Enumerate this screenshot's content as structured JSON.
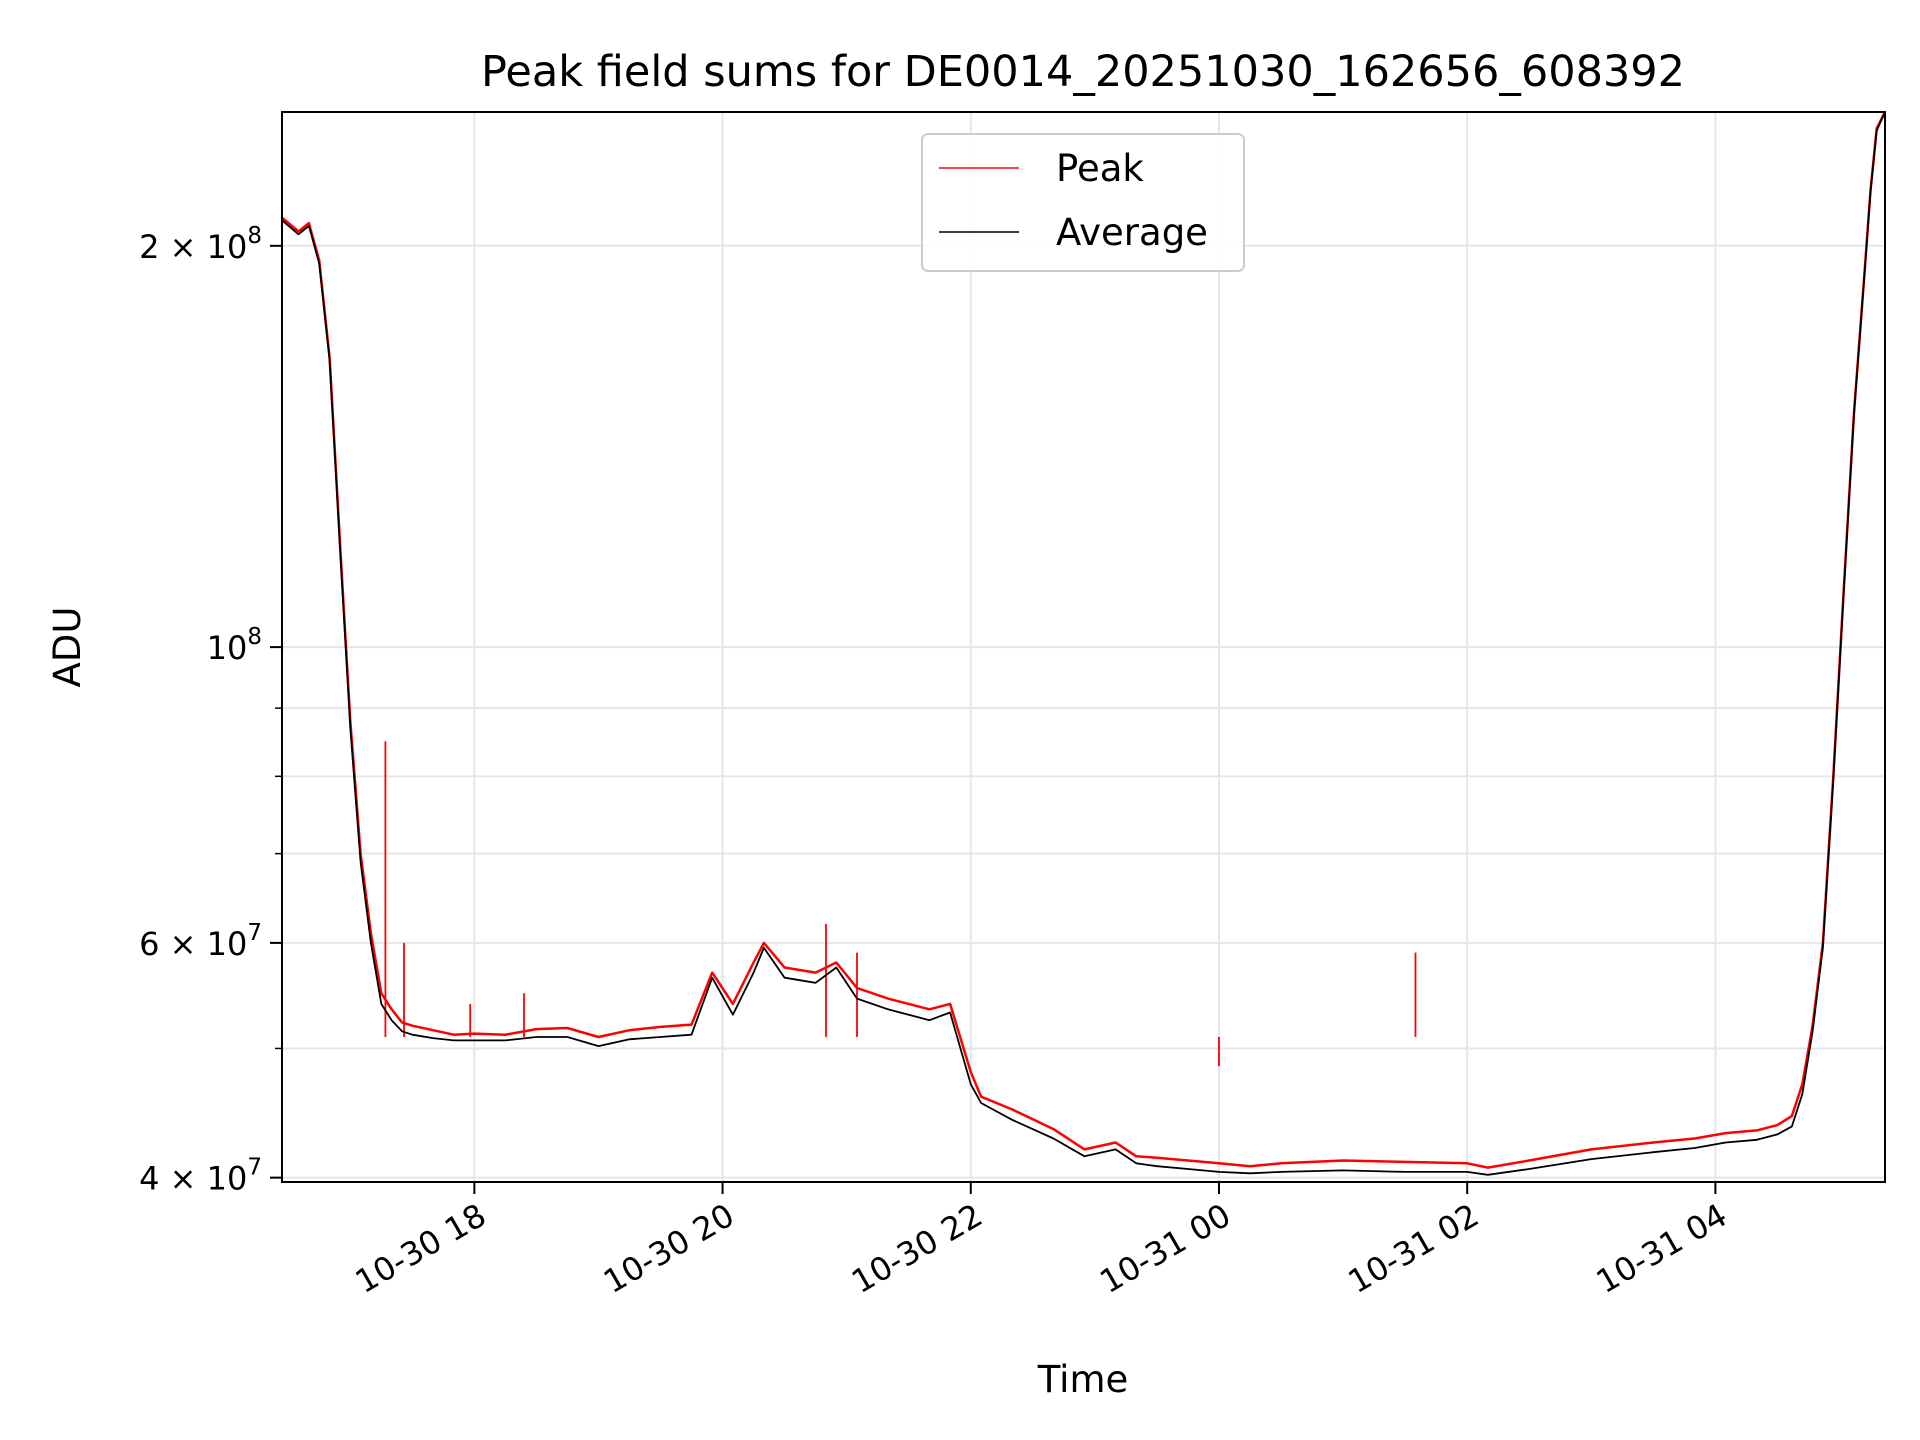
{
  "chart_data": {
    "type": "line",
    "title": "Peak field sums for DE0014_20251030_162656_608392",
    "xlabel": "Time",
    "ylabel": "ADU",
    "yscale": "log",
    "grid": true,
    "legend_position": "top-center",
    "xlim": [
      "2025-10-30 16:27",
      "2025-10-31 05:22"
    ],
    "ylim": [
      39700000,
      252000000
    ],
    "x_ticks": [
      {
        "x": "2025-10-30 18:00",
        "label": "10-30 18"
      },
      {
        "x": "2025-10-30 20:00",
        "label": "10-30 20"
      },
      {
        "x": "2025-10-30 22:00",
        "label": "10-30 22"
      },
      {
        "x": "2025-10-31 00:00",
        "label": "10-31 00"
      },
      {
        "x": "2025-10-31 02:00",
        "label": "10-31 02"
      },
      {
        "x": "2025-10-31 04:00",
        "label": "10-31 04"
      }
    ],
    "y_ticks": [
      {
        "y": 40000000,
        "base": "4",
        "exp": "7"
      },
      {
        "y": 60000000,
        "base": "6",
        "exp": "7"
      },
      {
        "y": 100000000,
        "base": "",
        "exp": "8"
      },
      {
        "y": 200000000,
        "base": "2",
        "exp": "8"
      }
    ],
    "series": [
      {
        "name": "Peak",
        "color": "#ff0000",
        "x": [
          "2025-10-30 16:27",
          "2025-10-30 16:35",
          "2025-10-30 16:40",
          "2025-10-30 16:45",
          "2025-10-30 16:50",
          "2025-10-30 16:55",
          "2025-10-30 17:00",
          "2025-10-30 17:05",
          "2025-10-30 17:10",
          "2025-10-30 17:15",
          "2025-10-30 17:20",
          "2025-10-30 17:25",
          "2025-10-30 17:30",
          "2025-10-30 17:40",
          "2025-10-30 17:50",
          "2025-10-30 18:00",
          "2025-10-30 18:15",
          "2025-10-30 18:30",
          "2025-10-30 18:45",
          "2025-10-30 19:00",
          "2025-10-30 19:15",
          "2025-10-30 19:30",
          "2025-10-30 19:45",
          "2025-10-30 19:55",
          "2025-10-30 20:05",
          "2025-10-30 20:15",
          "2025-10-30 20:20",
          "2025-10-30 20:30",
          "2025-10-30 20:45",
          "2025-10-30 20:55",
          "2025-10-30 21:05",
          "2025-10-30 21:20",
          "2025-10-30 21:30",
          "2025-10-30 21:40",
          "2025-10-30 21:50",
          "2025-10-30 22:00",
          "2025-10-30 22:05",
          "2025-10-30 22:20",
          "2025-10-30 22:40",
          "2025-10-30 22:55",
          "2025-10-30 23:10",
          "2025-10-30 23:20",
          "2025-10-30 23:30",
          "2025-10-30 23:45",
          "2025-10-31 00:00",
          "2025-10-31 00:15",
          "2025-10-31 00:30",
          "2025-10-31 01:00",
          "2025-10-31 01:30",
          "2025-10-31 02:00",
          "2025-10-31 02:10",
          "2025-10-31 02:30",
          "2025-10-31 03:00",
          "2025-10-31 03:30",
          "2025-10-31 03:50",
          "2025-10-31 04:05",
          "2025-10-31 04:20",
          "2025-10-31 04:30",
          "2025-10-31 04:37",
          "2025-10-31 04:42",
          "2025-10-31 04:47",
          "2025-10-31 04:52",
          "2025-10-31 04:57",
          "2025-10-31 05:02",
          "2025-10-31 05:07",
          "2025-10-31 05:12",
          "2025-10-31 05:15",
          "2025-10-31 05:18",
          "2025-10-31 05:22"
        ],
        "values": [
          210000000,
          205000000,
          208000000,
          195000000,
          165000000,
          120000000,
          88000000,
          70000000,
          61000000,
          55000000,
          53500000,
          52300000,
          52000000,
          51600000,
          51200000,
          51300000,
          51200000,
          51700000,
          51800000,
          51000000,
          51600000,
          51900000,
          52100000,
          57000000,
          54000000,
          58000000,
          60000000,
          57500000,
          57000000,
          58000000,
          55500000,
          54500000,
          54000000,
          53500000,
          54000000,
          48000000,
          46000000,
          45000000,
          43500000,
          42000000,
          42500000,
          41500000,
          41400000,
          41200000,
          41000000,
          40800000,
          41000000,
          41200000,
          41100000,
          41000000,
          40700000,
          41200000,
          42000000,
          42500000,
          42800000,
          43200000,
          43400000,
          43800000,
          44500000,
          47000000,
          52000000,
          60000000,
          80000000,
          110000000,
          150000000,
          190000000,
          220000000,
          245000000,
          252000000
        ],
        "spikes": [
          {
            "x": "2025-10-30 17:17",
            "value": 85000000
          },
          {
            "x": "2025-10-30 17:26",
            "value": 60000000
          },
          {
            "x": "2025-10-30 17:58",
            "value": 54000000
          },
          {
            "x": "2025-10-30 18:24",
            "value": 55000000
          },
          {
            "x": "2025-10-30 20:50",
            "value": 62000000
          },
          {
            "x": "2025-10-30 21:05",
            "value": 59000000
          },
          {
            "x": "2025-10-31 00:00",
            "value": 48500000
          },
          {
            "x": "2025-10-31 01:35",
            "value": 59000000
          }
        ]
      },
      {
        "name": "Average",
        "color": "#000000",
        "x": [
          "2025-10-30 16:27",
          "2025-10-30 16:35",
          "2025-10-30 16:40",
          "2025-10-30 16:45",
          "2025-10-30 16:50",
          "2025-10-30 16:55",
          "2025-10-30 17:00",
          "2025-10-30 17:05",
          "2025-10-30 17:10",
          "2025-10-30 17:15",
          "2025-10-30 17:20",
          "2025-10-30 17:25",
          "2025-10-30 17:30",
          "2025-10-30 17:40",
          "2025-10-30 17:50",
          "2025-10-30 18:00",
          "2025-10-30 18:15",
          "2025-10-30 18:30",
          "2025-10-30 18:45",
          "2025-10-30 19:00",
          "2025-10-30 19:15",
          "2025-10-30 19:30",
          "2025-10-30 19:45",
          "2025-10-30 19:55",
          "2025-10-30 20:05",
          "2025-10-30 20:15",
          "2025-10-30 20:20",
          "2025-10-30 20:30",
          "2025-10-30 20:45",
          "2025-10-30 20:55",
          "2025-10-30 21:05",
          "2025-10-30 21:20",
          "2025-10-30 21:30",
          "2025-10-30 21:40",
          "2025-10-30 21:50",
          "2025-10-30 22:00",
          "2025-10-30 22:05",
          "2025-10-30 22:20",
          "2025-10-30 22:40",
          "2025-10-30 22:55",
          "2025-10-30 23:10",
          "2025-10-30 23:20",
          "2025-10-30 23:30",
          "2025-10-30 23:45",
          "2025-10-31 00:00",
          "2025-10-31 00:15",
          "2025-10-31 00:30",
          "2025-10-31 01:00",
          "2025-10-31 01:30",
          "2025-10-31 02:00",
          "2025-10-31 02:10",
          "2025-10-31 02:30",
          "2025-10-31 03:00",
          "2025-10-31 03:30",
          "2025-10-31 03:50",
          "2025-10-31 04:05",
          "2025-10-31 04:20",
          "2025-10-31 04:30",
          "2025-10-31 04:37",
          "2025-10-31 04:42",
          "2025-10-31 04:47",
          "2025-10-31 04:52",
          "2025-10-31 04:57",
          "2025-10-31 05:02",
          "2025-10-31 05:07",
          "2025-10-31 05:12",
          "2025-10-31 05:15",
          "2025-10-31 05:18",
          "2025-10-31 05:22"
        ],
        "values": [
          209000000,
          204000000,
          207000000,
          194000000,
          164000000,
          119000000,
          87000000,
          69000000,
          60000000,
          54000000,
          52500000,
          51500000,
          51200000,
          50900000,
          50700000,
          50700000,
          50700000,
          51000000,
          51000000,
          50200000,
          50800000,
          51000000,
          51200000,
          56500000,
          53000000,
          57000000,
          59500000,
          56500000,
          56000000,
          57500000,
          54500000,
          53500000,
          53000000,
          52500000,
          53200000,
          47000000,
          45500000,
          44200000,
          42800000,
          41500000,
          42000000,
          41000000,
          40800000,
          40600000,
          40400000,
          40300000,
          40400000,
          40500000,
          40400000,
          40400000,
          40200000,
          40600000,
          41300000,
          41800000,
          42100000,
          42500000,
          42700000,
          43100000,
          43700000,
          46200000,
          51500000,
          59500000,
          79500000,
          109500000,
          149500000,
          189500000,
          219500000,
          244000000,
          252000000
        ]
      }
    ]
  }
}
